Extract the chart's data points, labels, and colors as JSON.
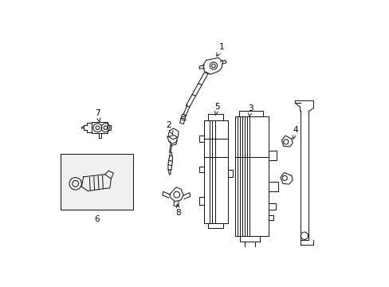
{
  "bg_color": "#ffffff",
  "line_color": "#1a1a1a",
  "fig_width": 4.89,
  "fig_height": 3.6,
  "dpi": 100,
  "lw": 0.75,
  "font_size": 7.5
}
